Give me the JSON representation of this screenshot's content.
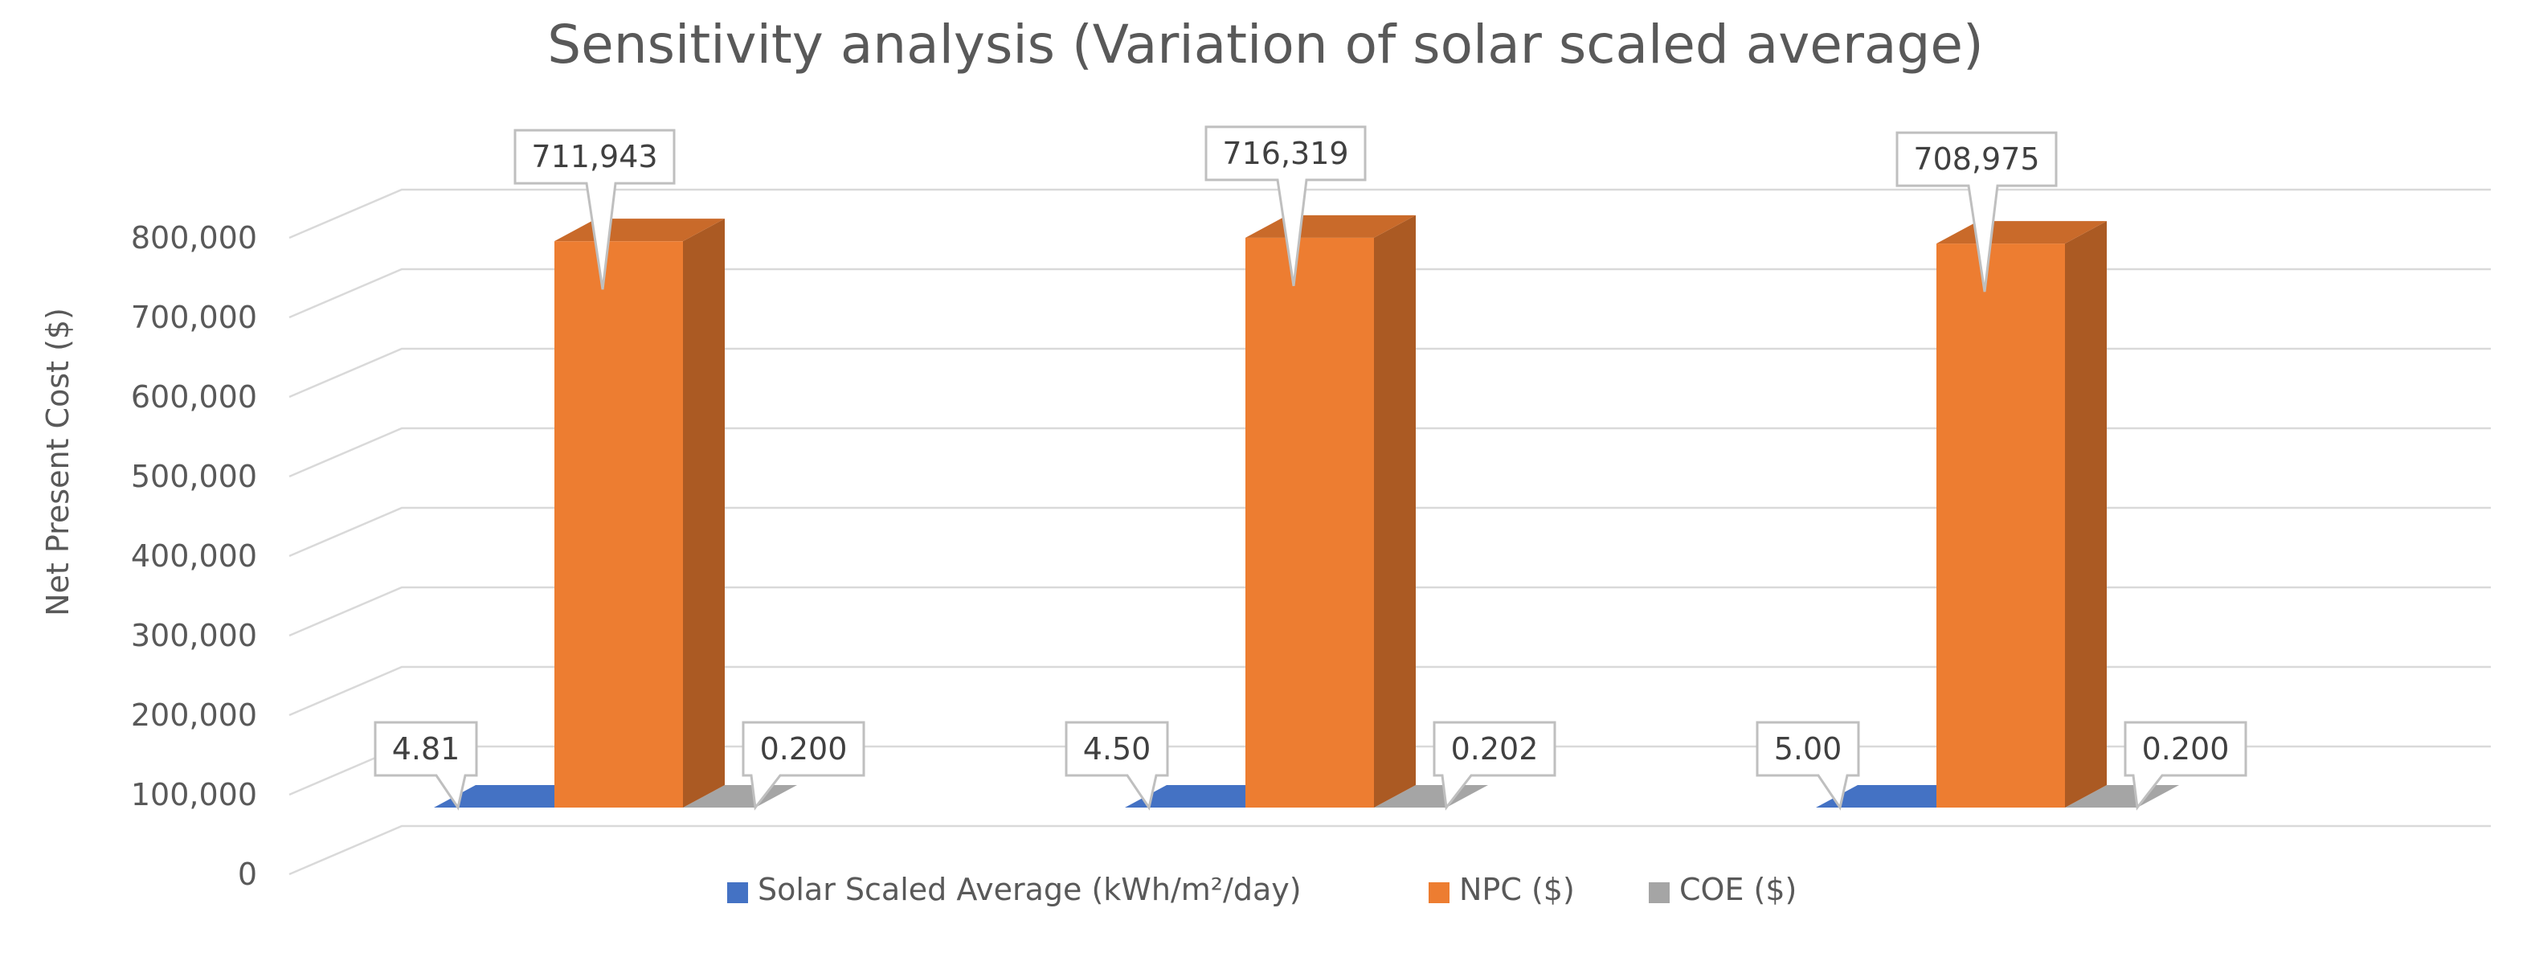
{
  "colors": {
    "background": "#FFFFFF",
    "grid": "#D9D9D9",
    "text": "#595959",
    "label_border": "#BFBFBF",
    "series": [
      "#4472C4",
      "#ED7D31",
      "#A5A5A5"
    ]
  },
  "chart_data": {
    "type": "bar",
    "subtype": "3d-clustered-column",
    "title": "Sensitivity analysis (Variation of solar scaled average)",
    "ylabel": "Net Present Cost ($)",
    "xlabel": "",
    "ylim": [
      0,
      800000
    ],
    "ytick_step": 100000,
    "yticks": [
      "0",
      "100,000",
      "200,000",
      "300,000",
      "400,000",
      "500,000",
      "600,000",
      "700,000",
      "800,000"
    ],
    "grid": true,
    "legend_position": "bottom",
    "categories": [
      "",
      "",
      ""
    ],
    "series": [
      {
        "name": "Solar Scaled Average (kWh/m²/day)",
        "color": "#4472C4",
        "values": [
          4.81,
          4.5,
          5.0
        ],
        "labels": [
          "4.81",
          "4.50",
          "5.00"
        ]
      },
      {
        "name": "NPC ($)",
        "color": "#ED7D31",
        "values": [
          711943,
          716319,
          708975
        ],
        "labels": [
          "711,943",
          "716,319",
          "708,975"
        ]
      },
      {
        "name": "COE ($)",
        "color": "#A5A5A5",
        "values": [
          0.2,
          0.202,
          0.2
        ],
        "labels": [
          "0.200",
          "0.202",
          "0.200"
        ]
      }
    ]
  }
}
